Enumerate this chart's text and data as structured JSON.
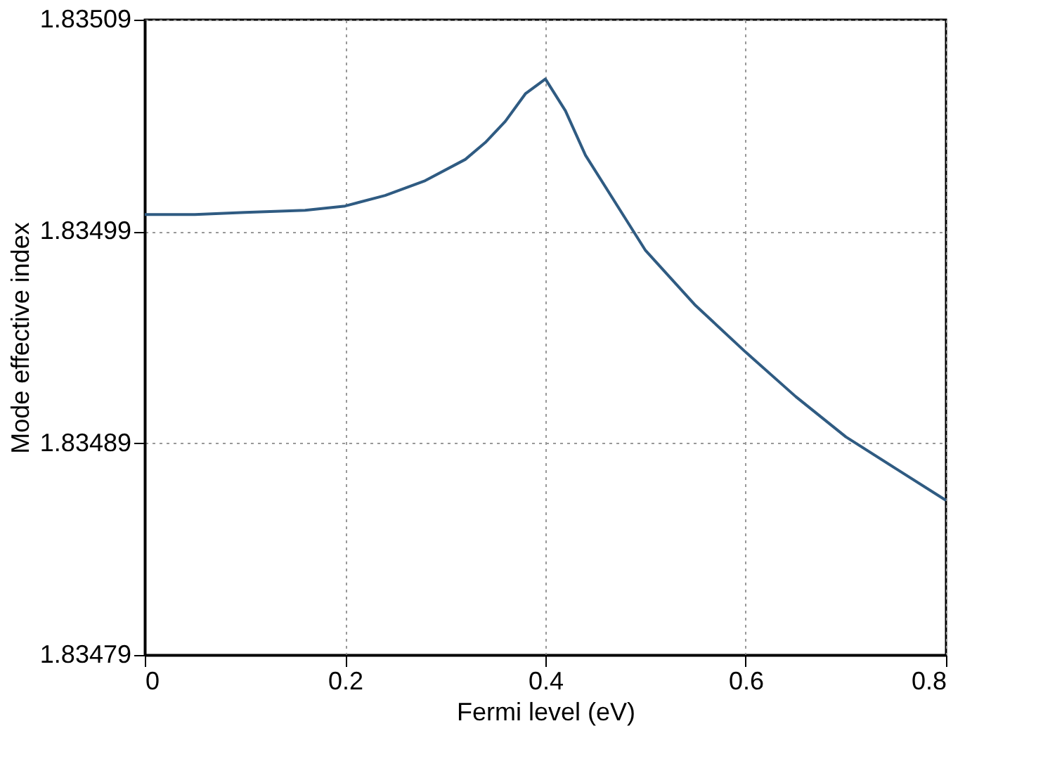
{
  "chart_data": {
    "type": "line",
    "xlabel": "Fermi level (eV)",
    "ylabel": "Mode effective index",
    "series": [
      {
        "color": "#2f5b82",
        "x": [
          0,
          0.05,
          0.1,
          0.16,
          0.2,
          0.24,
          0.28,
          0.32,
          0.34,
          0.36,
          0.38,
          0.4,
          0.42,
          0.44,
          0.48,
          0.5,
          0.55,
          0.6,
          0.65,
          0.7,
          0.75,
          0.8
        ],
        "values": [
          1.834998,
          1.834998,
          1.834999,
          1.835,
          1.835002,
          1.835007,
          1.835014,
          1.835024,
          1.835032,
          1.835042,
          1.835055,
          1.835062,
          1.835047,
          1.835026,
          1.834996,
          1.834981,
          1.834955,
          1.834933,
          1.834912,
          1.834893,
          1.834878,
          1.834863
        ]
      }
    ],
    "xlim": [
      0,
      0.8
    ],
    "xticks": [
      0,
      0.2,
      0.4,
      0.6,
      0.8
    ],
    "ylim": [
      1.83479,
      1.83509
    ],
    "yticks": [
      1.83479,
      1.83489,
      1.83499,
      1.83509
    ],
    "grid": true,
    "line_style": "solid",
    "marker": "none"
  }
}
